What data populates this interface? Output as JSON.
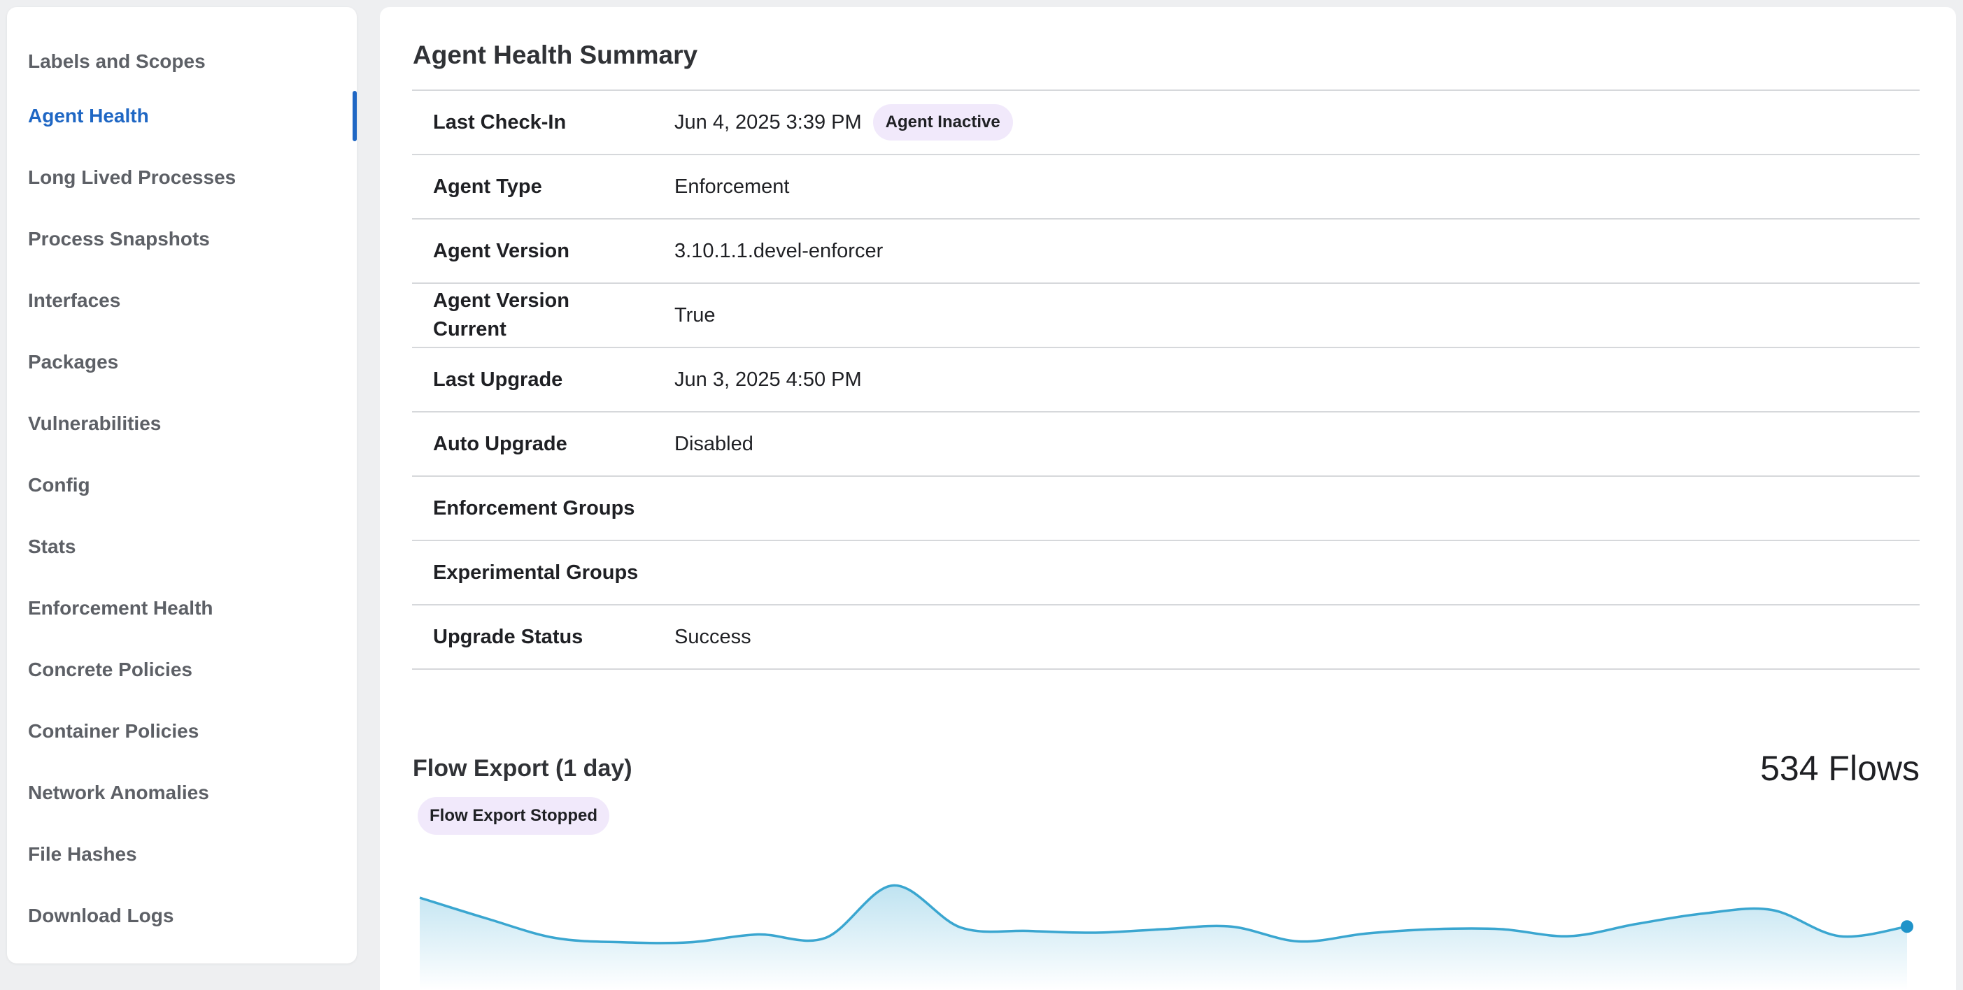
{
  "sidebar": {
    "items": [
      {
        "label": "Labels and Scopes"
      },
      {
        "label": "Agent Health"
      },
      {
        "label": "Long Lived Processes"
      },
      {
        "label": "Process Snapshots"
      },
      {
        "label": "Interfaces"
      },
      {
        "label": "Packages"
      },
      {
        "label": "Vulnerabilities"
      },
      {
        "label": "Config"
      },
      {
        "label": "Stats"
      },
      {
        "label": "Enforcement Health"
      },
      {
        "label": "Concrete Policies"
      },
      {
        "label": "Container Policies"
      },
      {
        "label": "Network Anomalies"
      },
      {
        "label": "File Hashes"
      },
      {
        "label": "Download Logs"
      }
    ],
    "active": "Agent Health"
  },
  "summary": {
    "title": "Agent Health Summary",
    "rows": [
      {
        "label": "Last Check-In",
        "value": "Jun 4, 2025 3:39 PM",
        "badge": "Agent Inactive"
      },
      {
        "label": "Agent Type",
        "value": "Enforcement"
      },
      {
        "label": "Agent Version",
        "value": "3.10.1.1.devel-enforcer"
      },
      {
        "label": "Agent Version Current",
        "value": "True"
      },
      {
        "label": "Last Upgrade",
        "value": "Jun 3, 2025 4:50 PM"
      },
      {
        "label": "Auto Upgrade",
        "value": "Disabled"
      },
      {
        "label": "Enforcement Groups",
        "value": ""
      },
      {
        "label": "Experimental Groups",
        "value": ""
      },
      {
        "label": "Upgrade Status",
        "value": "Success"
      }
    ]
  },
  "flow_export": {
    "title": "Flow Export (1 day)",
    "count": "534 Flows",
    "status_badge": "Flow Export Stopped",
    "sparkline": [
      96,
      72,
      50,
      45,
      45,
      54,
      50,
      110,
      62,
      58,
      56,
      60,
      63,
      46,
      55,
      60,
      60,
      52,
      66,
      78,
      82,
      52,
      63
    ],
    "colors": {
      "line": "#3aa6d0",
      "fill_top": "#bfe3f1",
      "fill_bottom": "#ffffff"
    }
  },
  "colors": {
    "accent": "#1f67c4",
    "badge_bg": "#f1e9fb"
  }
}
